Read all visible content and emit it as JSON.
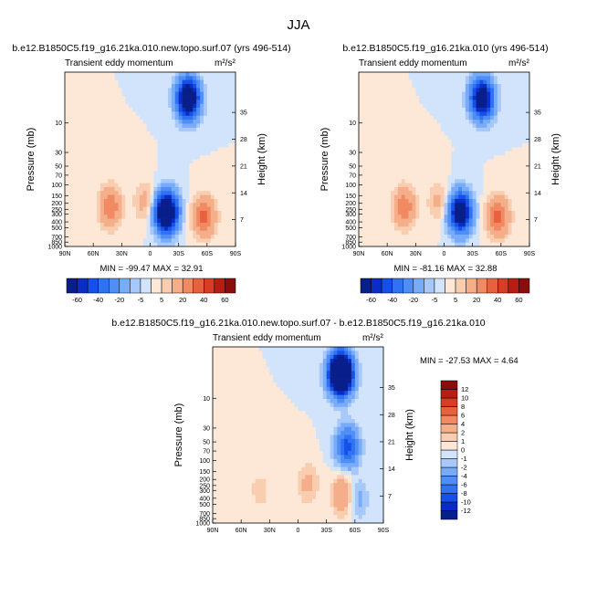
{
  "page_title": "JJA",
  "chart_data": [
    {
      "type": "heatmap",
      "title": "b.e12.B1850C5.f19_g16.21ka.010.new.topo.surf.07 (yrs 496-514)",
      "subtitle": "Transient eddy momentum",
      "units": "m²/s²",
      "ylabel": "Pressure (mb)",
      "y2label": "Height (km)",
      "xticks": [
        "90N",
        "60N",
        "30N",
        "0",
        "30S",
        "60S",
        "90S"
      ],
      "yticks": [
        "10",
        "30",
        "50",
        "70",
        "100",
        "150",
        "200",
        "250",
        "300",
        "400",
        "500",
        "700",
        "850",
        "1000"
      ],
      "y2ticks": [
        "35",
        "28",
        "21",
        "14",
        "7"
      ],
      "min": -99.47,
      "max": 32.91,
      "stats_text": "MIN = -99.47   MAX =  32.91",
      "features": [
        {
          "lat": -17,
          "p": 280,
          "amp": -99.47
        },
        {
          "lat": -40,
          "p": 4,
          "amp": -90
        },
        {
          "lat": 42,
          "p": 230,
          "amp": 28
        },
        {
          "lat": -57,
          "p": 330,
          "amp": 32.91
        },
        {
          "lat": 5,
          "p": 190,
          "amp": 14
        }
      ]
    },
    {
      "type": "heatmap",
      "title": "b.e12.B1850C5.f19_g16.21ka.010 (yrs 496-514)",
      "subtitle": "Transient eddy momentum",
      "units": "m²/s²",
      "ylabel": "Pressure (mb)",
      "y2label": "Height (km)",
      "xticks": [
        "90N",
        "60N",
        "30N",
        "0",
        "30S",
        "60S",
        "90S"
      ],
      "yticks": [
        "10",
        "30",
        "50",
        "70",
        "100",
        "150",
        "200",
        "250",
        "300",
        "400",
        "500",
        "700",
        "850",
        "1000"
      ],
      "y2ticks": [
        "35",
        "28",
        "21",
        "14",
        "7"
      ],
      "min": -81.16,
      "max": 32.88,
      "stats_text": "MIN = -81.16   MAX =  32.88",
      "features": [
        {
          "lat": -17,
          "p": 280,
          "amp": -81.16
        },
        {
          "lat": -40,
          "p": 4,
          "amp": -80
        },
        {
          "lat": 42,
          "p": 230,
          "amp": 27
        },
        {
          "lat": -57,
          "p": 330,
          "amp": 32.88
        },
        {
          "lat": 5,
          "p": 190,
          "amp": 13
        }
      ]
    },
    {
      "type": "heatmap",
      "title": "b.e12.B1850C5.f19_g16.21ka.010.new.topo.surf.07 - b.e12.B1850C5.f19_g16.21ka.010",
      "subtitle": "Transient eddy momentum",
      "units": "m²/s²",
      "ylabel": "Pressure (mb)",
      "y2label": "Height (km)",
      "xticks": [
        "90N",
        "60N",
        "30N",
        "0",
        "30S",
        "60S",
        "90S"
      ],
      "yticks": [
        "10",
        "30",
        "50",
        "70",
        "100",
        "150",
        "200",
        "250",
        "300",
        "400",
        "500",
        "700",
        "850",
        "1000"
      ],
      "y2ticks": [
        "35",
        "28",
        "21",
        "14",
        "7"
      ],
      "min": -27.53,
      "max": 4.64,
      "stats_text": "MIN = -27.53  MAX =  4.64",
      "features": [
        {
          "lat": -45,
          "p": 4,
          "amp": -27.53
        },
        {
          "lat": -52,
          "p": 60,
          "amp": -9
        },
        {
          "lat": -48,
          "p": 350,
          "amp": 4.64
        },
        {
          "lat": -10,
          "p": 230,
          "amp": 2.5
        },
        {
          "lat": 40,
          "p": 300,
          "amp": 1.5
        },
        {
          "lat": -62,
          "p": 400,
          "amp": -3
        }
      ]
    }
  ],
  "colorbar_top": {
    "labels": [
      "-60",
      "-40",
      "-20",
      "-5",
      "5",
      "20",
      "40",
      "60"
    ],
    "levels": [
      -70,
      -60,
      -50,
      -40,
      -30,
      -20,
      -10,
      -5,
      0,
      5,
      10,
      20,
      30,
      40,
      50,
      60,
      70
    ]
  },
  "colorbar_diff": {
    "labels": [
      "12",
      "10",
      "8",
      "6",
      "4",
      "2",
      "1",
      "0",
      "-1",
      "-2",
      "-4",
      "-6",
      "-8",
      "-10",
      "-12"
    ],
    "levels": [
      -14,
      -12,
      -10,
      -8,
      -6,
      -4,
      -2,
      -1,
      0,
      1,
      2,
      4,
      6,
      8,
      10,
      12,
      14
    ]
  },
  "palette": [
    "#081e8a",
    "#0a2dc8",
    "#1550e8",
    "#2f72f2",
    "#4f8ef5",
    "#79acf8",
    "#a6c8fa",
    "#d2e4fc",
    "#fde8d8",
    "#f9cdb0",
    "#f5ae8a",
    "#f18a63",
    "#e8613f",
    "#d73c25",
    "#b81d15",
    "#8a0c0c"
  ]
}
